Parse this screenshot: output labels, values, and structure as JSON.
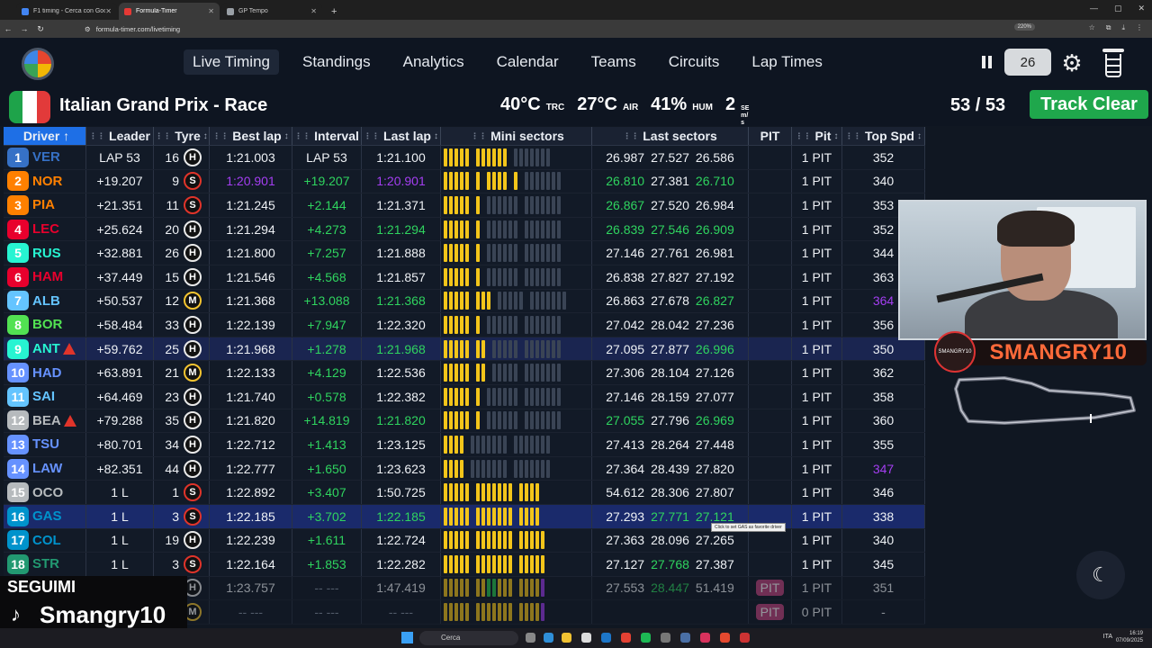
{
  "browser": {
    "tabs": [
      {
        "title": "F1 timing - Cerca con Google",
        "color": "#4285f4",
        "active": false
      },
      {
        "title": "Formula-Timer",
        "color": "#e53935",
        "active": true
      },
      {
        "title": "GP Tempo",
        "color": "#9aa0a6",
        "active": false
      }
    ],
    "url": "formula-timer.com/livetiming",
    "zoom": "220%"
  },
  "nav": {
    "items": [
      "Live Timing",
      "Standings",
      "Analytics",
      "Calendar",
      "Teams",
      "Circuits",
      "Lap Times"
    ],
    "active": 0,
    "delay_value": "26"
  },
  "session": {
    "title": "Italian Grand Prix - Race",
    "track_temp": "40°C",
    "track_label": "TRC",
    "air_temp": "27°C",
    "air_label": "AIR",
    "humidity": "41%",
    "humidity_label": "HUM",
    "wind": "2",
    "wind_unit_1": "SE",
    "wind_unit_2": "m/",
    "wind_unit_3": "s",
    "lap_count": "53 / 53",
    "track_status": "Track Clear"
  },
  "table": {
    "headers": {
      "driver": "Driver",
      "driver_sort": "↑",
      "leader": "Leader",
      "tyre": "Tyre",
      "best_lap": "Best lap",
      "interval": "Interval",
      "last_lap": "Last lap",
      "mini_sectors": "Mini sectors",
      "last_sectors": "Last sectors",
      "pit_status": "PIT",
      "pit": "Pit",
      "top_speed": "Top Spd",
      "sort_icon": "↕",
      "grip_icon": "⋮⋮"
    },
    "rows": [
      {
        "pos": "1",
        "abbr": "VER",
        "color": "#3671c6",
        "warn": false,
        "leader": "LAP 53",
        "tyre_laps": "16",
        "tyre": "H",
        "best": "1:21.003",
        "best_c": "",
        "interval": "LAP 53",
        "int_c": "",
        "last": "1:21.100",
        "last_c": "",
        "mini": "yyyyy-yyyyyy-bbbbbbb-",
        "s1": "26.987",
        "s1c": "",
        "s2": "27.527",
        "s2c": "",
        "s3": "26.586",
        "s3c": "",
        "pitstat": "",
        "pits": "1 PIT",
        "spd": "352",
        "spd_c": "",
        "hl": ""
      },
      {
        "pos": "2",
        "abbr": "NOR",
        "color": "#ff8000",
        "warn": false,
        "leader": "+19.207",
        "tyre_laps": "9",
        "tyre": "S",
        "best": "1:20.901",
        "best_c": "pur",
        "interval": "+19.207",
        "int_c": "grn",
        "last": "1:20.901",
        "last_c": "pur",
        "mini": "yyyyy-y-yyyy-y-bbbbbbb",
        "s1": "26.810",
        "s1c": "grn",
        "s2": "27.381",
        "s2c": "",
        "s3": "26.710",
        "s3c": "grn",
        "pitstat": "",
        "pits": "1 PIT",
        "spd": "340",
        "spd_c": "",
        "hl": ""
      },
      {
        "pos": "3",
        "abbr": "PIA",
        "color": "#ff8000",
        "warn": false,
        "leader": "+21.351",
        "tyre_laps": "11",
        "tyre": "S",
        "best": "1:21.245",
        "best_c": "",
        "interval": "+2.144",
        "int_c": "grn",
        "last": "1:21.371",
        "last_c": "",
        "mini": "yyyyy-y-bbbbbb-bbbbbbb",
        "s1": "26.867",
        "s1c": "grn",
        "s2": "27.520",
        "s2c": "",
        "s3": "26.984",
        "s3c": "",
        "pitstat": "",
        "pits": "1 PIT",
        "spd": "353",
        "spd_c": "",
        "hl": ""
      },
      {
        "pos": "4",
        "abbr": "LEC",
        "color": "#e8002d",
        "warn": false,
        "leader": "+25.624",
        "tyre_laps": "20",
        "tyre": "H",
        "best": "1:21.294",
        "best_c": "",
        "interval": "+4.273",
        "int_c": "grn",
        "last": "1:21.294",
        "last_c": "grn",
        "mini": "yyyyy-y-bbbbbb-bbbbbbb",
        "s1": "26.839",
        "s1c": "grn",
        "s2": "27.546",
        "s2c": "grn",
        "s3": "26.909",
        "s3c": "grn",
        "pitstat": "",
        "pits": "1 PIT",
        "spd": "352",
        "spd_c": "",
        "hl": ""
      },
      {
        "pos": "5",
        "abbr": "RUS",
        "color": "#27f4d2",
        "warn": false,
        "leader": "+32.881",
        "tyre_laps": "26",
        "tyre": "H",
        "best": "1:21.800",
        "best_c": "",
        "interval": "+7.257",
        "int_c": "grn",
        "last": "1:21.888",
        "last_c": "",
        "mini": "yyyyy-y-bbbbbb-bbbbbbb",
        "s1": "27.146",
        "s1c": "",
        "s2": "27.761",
        "s2c": "",
        "s3": "26.981",
        "s3c": "",
        "pitstat": "",
        "pits": "1 PIT",
        "spd": "344",
        "spd_c": "",
        "hl": ""
      },
      {
        "pos": "6",
        "abbr": "HAM",
        "color": "#e8002d",
        "warn": false,
        "leader": "+37.449",
        "tyre_laps": "15",
        "tyre": "H",
        "best": "1:21.546",
        "best_c": "",
        "interval": "+4.568",
        "int_c": "grn",
        "last": "1:21.857",
        "last_c": "",
        "mini": "yyyyy-y-bbbbbb-bbbbbbb",
        "s1": "26.838",
        "s1c": "",
        "s2": "27.827",
        "s2c": "",
        "s3": "27.192",
        "s3c": "",
        "pitstat": "",
        "pits": "1 PIT",
        "spd": "363",
        "spd_c": "",
        "hl": ""
      },
      {
        "pos": "7",
        "abbr": "ALB",
        "color": "#64c4ff",
        "warn": false,
        "leader": "+50.537",
        "tyre_laps": "12",
        "tyre": "M",
        "best": "1:21.368",
        "best_c": "",
        "interval": "+13.088",
        "int_c": "grn",
        "last": "1:21.368",
        "last_c": "grn",
        "mini": "yyyyy-yyy-bbbbb-bbbbbbb",
        "s1": "26.863",
        "s1c": "",
        "s2": "27.678",
        "s2c": "",
        "s3": "26.827",
        "s3c": "grn",
        "pitstat": "",
        "pits": "1 PIT",
        "spd": "364",
        "spd_c": "pur",
        "hl": ""
      },
      {
        "pos": "8",
        "abbr": "BOR",
        "color": "#52e252",
        "warn": false,
        "leader": "+58.484",
        "tyre_laps": "33",
        "tyre": "H",
        "best": "1:22.139",
        "best_c": "",
        "interval": "+7.947",
        "int_c": "grn",
        "last": "1:22.320",
        "last_c": "",
        "mini": "yyyyy-y-bbbbbb-bbbbbbb",
        "s1": "27.042",
        "s1c": "",
        "s2": "28.042",
        "s2c": "",
        "s3": "27.236",
        "s3c": "",
        "pitstat": "",
        "pits": "1 PIT",
        "spd": "356",
        "spd_c": "",
        "hl": ""
      },
      {
        "pos": "9",
        "abbr": "ANT",
        "color": "#27f4d2",
        "warn": true,
        "leader": "+59.762",
        "tyre_laps": "25",
        "tyre": "H",
        "best": "1:21.968",
        "best_c": "",
        "interval": "+1.278",
        "int_c": "grn",
        "last": "1:21.968",
        "last_c": "grn",
        "mini": "yyyyy-yy-bbbbb-bbbbbbb",
        "s1": "27.095",
        "s1c": "",
        "s2": "27.877",
        "s2c": "",
        "s3": "26.996",
        "s3c": "grn",
        "pitstat": "",
        "pits": "1 PIT",
        "spd": "350",
        "spd_c": "",
        "hl": "hl2"
      },
      {
        "pos": "10",
        "abbr": "HAD",
        "color": "#6692ff",
        "warn": false,
        "leader": "+63.891",
        "tyre_laps": "21",
        "tyre": "M",
        "best": "1:22.133",
        "best_c": "",
        "interval": "+4.129",
        "int_c": "grn",
        "last": "1:22.536",
        "last_c": "",
        "mini": "yyyyy-yy-bbbbb-bbbbbbb",
        "s1": "27.306",
        "s1c": "",
        "s2": "28.104",
        "s2c": "",
        "s3": "27.126",
        "s3c": "",
        "pitstat": "",
        "pits": "1 PIT",
        "spd": "362",
        "spd_c": "",
        "hl": ""
      },
      {
        "pos": "11",
        "abbr": "SAI",
        "color": "#64c4ff",
        "warn": false,
        "leader": "+64.469",
        "tyre_laps": "23",
        "tyre": "H",
        "best": "1:21.740",
        "best_c": "",
        "interval": "+0.578",
        "int_c": "grn",
        "last": "1:22.382",
        "last_c": "",
        "mini": "yyyyy-y-bbbbbb-bbbbbbb",
        "s1": "27.146",
        "s1c": "",
        "s2": "28.159",
        "s2c": "",
        "s3": "27.077",
        "s3c": "",
        "pitstat": "",
        "pits": "1 PIT",
        "spd": "358",
        "spd_c": "",
        "hl": ""
      },
      {
        "pos": "12",
        "abbr": "BEA",
        "color": "#b6babd",
        "warn": true,
        "leader": "+79.288",
        "tyre_laps": "35",
        "tyre": "H",
        "best": "1:21.820",
        "best_c": "",
        "interval": "+14.819",
        "int_c": "grn",
        "last": "1:21.820",
        "last_c": "grn",
        "mini": "yyyyy-y-bbbbbb-bbbbbbb",
        "s1": "27.055",
        "s1c": "grn",
        "s2": "27.796",
        "s2c": "",
        "s3": "26.969",
        "s3c": "grn",
        "pitstat": "",
        "pits": "1 PIT",
        "spd": "360",
        "spd_c": "",
        "hl": ""
      },
      {
        "pos": "13",
        "abbr": "TSU",
        "color": "#6692ff",
        "warn": false,
        "leader": "+80.701",
        "tyre_laps": "34",
        "tyre": "H",
        "best": "1:22.712",
        "best_c": "",
        "interval": "+1.413",
        "int_c": "grn",
        "last": "1:23.125",
        "last_c": "",
        "mini": "yyyy-bbbbbbb-bbbbbbb",
        "s1": "27.413",
        "s1c": "",
        "s2": "28.264",
        "s2c": "",
        "s3": "27.448",
        "s3c": "",
        "pitstat": "",
        "pits": "1 PIT",
        "spd": "355",
        "spd_c": "",
        "hl": ""
      },
      {
        "pos": "14",
        "abbr": "LAW",
        "color": "#6692ff",
        "warn": false,
        "leader": "+82.351",
        "tyre_laps": "44",
        "tyre": "H",
        "best": "1:22.777",
        "best_c": "",
        "interval": "+1.650",
        "int_c": "grn",
        "last": "1:23.623",
        "last_c": "",
        "mini": "yyyy-bbbbbbb-bbbbbbb",
        "s1": "27.364",
        "s1c": "",
        "s2": "28.439",
        "s2c": "",
        "s3": "27.820",
        "s3c": "",
        "pitstat": "",
        "pits": "1 PIT",
        "spd": "347",
        "spd_c": "pur",
        "hl": ""
      },
      {
        "pos": "15",
        "abbr": "OCO",
        "color": "#b6babd",
        "warn": false,
        "leader": "1 L",
        "tyre_laps": "1",
        "tyre": "S",
        "best": "1:22.892",
        "best_c": "",
        "interval": "+3.407",
        "int_c": "grn",
        "last": "1:50.725",
        "last_c": "",
        "mini": "yyyyy-yyyyyyy-yyyy-",
        "s1": "54.612",
        "s1c": "",
        "s2": "28.306",
        "s2c": "",
        "s3": "27.807",
        "s3c": "",
        "pitstat": "",
        "pits": "1 PIT",
        "spd": "346",
        "spd_c": "",
        "hl": ""
      },
      {
        "pos": "16",
        "abbr": "GAS",
        "color": "#0093cc",
        "warn": false,
        "leader": "1 L",
        "tyre_laps": "3",
        "tyre": "S",
        "best": "1:22.185",
        "best_c": "",
        "interval": "+3.702",
        "int_c": "grn",
        "last": "1:22.185",
        "last_c": "grn",
        "mini": "yyyyy-yyyyyyy-yyyy-",
        "s1": "27.293",
        "s1c": "",
        "s2": "27.771",
        "s2c": "grn",
        "s3": "27.121",
        "s3c": "grn",
        "pitstat": "",
        "pits": "1 PIT",
        "spd": "338",
        "spd_c": "",
        "hl": "hl"
      },
      {
        "pos": "17",
        "abbr": "COL",
        "color": "#0093cc",
        "warn": false,
        "leader": "1 L",
        "tyre_laps": "19",
        "tyre": "H",
        "best": "1:22.239",
        "best_c": "",
        "interval": "+1.611",
        "int_c": "grn",
        "last": "1:22.724",
        "last_c": "",
        "mini": "yyyyy-yyyyyyy-yyyyy",
        "s1": "27.363",
        "s1c": "",
        "s2": "28.096",
        "s2c": "",
        "s3": "27.265",
        "s3c": "",
        "pitstat": "",
        "pits": "1 PIT",
        "spd": "340",
        "spd_c": "",
        "hl": ""
      },
      {
        "pos": "18",
        "abbr": "STR",
        "color": "#229971",
        "warn": false,
        "leader": "1 L",
        "tyre_laps": "3",
        "tyre": "S",
        "best": "1:22.164",
        "best_c": "",
        "interval": "+1.853",
        "int_c": "grn",
        "last": "1:22.282",
        "last_c": "",
        "mini": "yyyyy-yyyyyyy-yyyyy",
        "s1": "27.127",
        "s1c": "",
        "s2": "27.768",
        "s2c": "grn",
        "s3": "27.387",
        "s3c": "",
        "pitstat": "",
        "pits": "1 PIT",
        "spd": "345",
        "spd_c": "",
        "hl": ""
      },
      {
        "pos": "",
        "abbr": "",
        "color": "#555",
        "warn": false,
        "leader": "",
        "tyre_laps": "",
        "tyre": "H",
        "best": "1:23.757",
        "best_c": "",
        "interval": "-- ---",
        "int_c": "gry",
        "last": "1:47.419",
        "last_c": "",
        "mini": "yyyyy-yyggyyy-yyyyp",
        "s1": "27.553",
        "s1c": "",
        "s2": "28.447",
        "s2c": "grn",
        "s3": "51.419",
        "s3c": "",
        "pitstat": "PIT",
        "pits": "1 PIT",
        "spd": "351",
        "spd_c": "",
        "hl": "dim"
      },
      {
        "pos": "",
        "abbr": "",
        "color": "#555",
        "warn": false,
        "leader": "",
        "tyre_laps": "",
        "tyre": "M",
        "best": "-- ---",
        "best_c": "gry",
        "interval": "-- ---",
        "int_c": "gry",
        "last": "-- ---",
        "last_c": "gry",
        "mini": "yyyyy-yyyyyyy-yyyyp",
        "s1": "",
        "s1c": "",
        "s2": "",
        "s2c": "",
        "s3": "",
        "s3c": "",
        "pitstat": "PIT",
        "pits": "0 PIT",
        "spd": "-",
        "spd_c": "",
        "hl": "dim"
      }
    ]
  },
  "tooltip": "Click to set GAS as favorite driver",
  "overlay": {
    "streamer_name": "SMANGRY10",
    "badge_text": "SMANGRY10",
    "follow_label": "SEGUIMI",
    "handle": "Smangry10"
  },
  "taskbar": {
    "search_placeholder": "Cerca",
    "lang": "ITA",
    "time": "16:19",
    "date": "07/09/2025"
  }
}
